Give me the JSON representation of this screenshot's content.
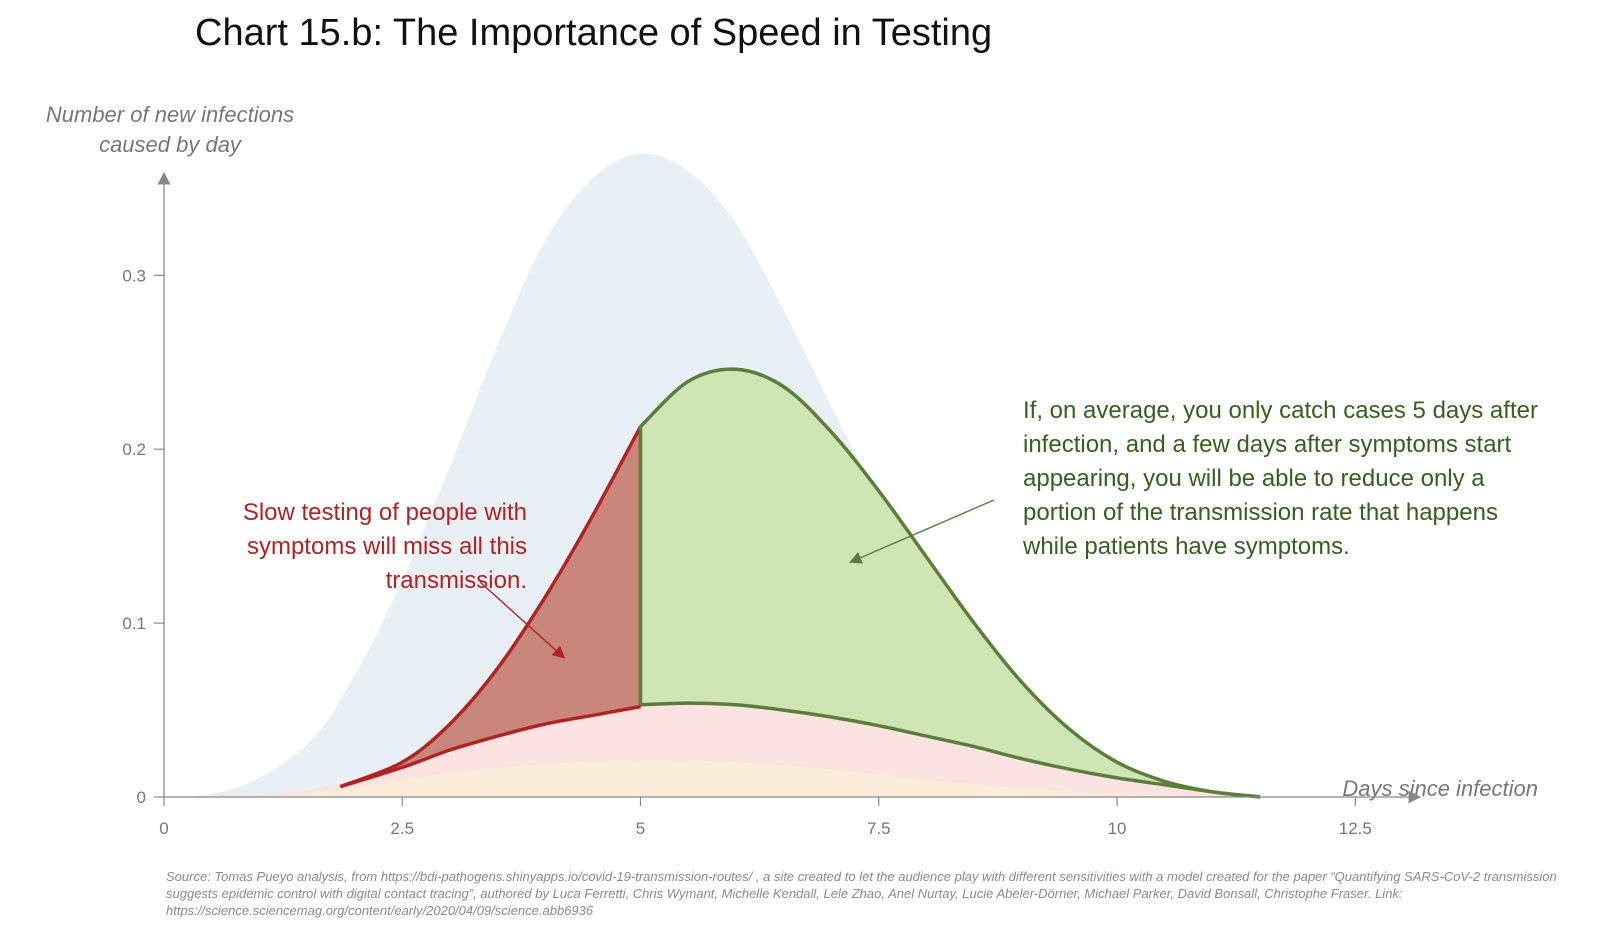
{
  "title": "Chart 15.b: The Importance of Speed in Testing",
  "source_note": "Source: Tomas Pueyo analysis, from https://bdi-pathogens.shinyapps.io/covid-19-transmission-routes/ , a site created to let the audience play with different sensitivities with a model created for the paper “Quantifying SARS-CoV-2 transmission suggests epidemic control with digital contact tracing”, authored by Luca Ferretti, Chris Wymant, Michelle Kendall, Lele Zhao, Anel Nurtay, Lucie Abeler-Dörner, Michael Parker, David Bonsall, Christophe Fraser. Link: https://science.sciencemag.org/content/early/2020/04/09/science.abb6936",
  "chart_data": {
    "type": "area",
    "xlabel": "Days since infection",
    "ylabel": "Number of new infections caused by day",
    "xlim": [
      0,
      13.2
    ],
    "ylim": [
      0,
      0.36
    ],
    "x_ticks": [
      0,
      2.5,
      5,
      7.5,
      10,
      12.5
    ],
    "x_tick_labels": [
      "0",
      "2.5",
      "5",
      "7.5",
      "10",
      "12.5"
    ],
    "y_ticks": [
      0,
      0.1,
      0.2,
      0.3
    ],
    "y_tick_labels": [
      "0",
      "0.1",
      "0.2",
      "0.3"
    ],
    "grid": false,
    "series": [
      {
        "role": "total",
        "color": "#e8f0f5",
        "x": [
          0.2,
          0.8,
          1.5,
          2.0,
          2.5,
          3.0,
          3.5,
          4.0,
          4.5,
          5.0,
          5.5,
          6.0,
          6.5,
          7.0,
          7.5,
          8.0,
          8.5,
          9.0,
          9.5,
          10.0,
          10.5,
          11.0,
          11.5
        ],
        "y": [
          0.0,
          0.006,
          0.03,
          0.07,
          0.125,
          0.19,
          0.26,
          0.32,
          0.356,
          0.37,
          0.36,
          0.33,
          0.28,
          0.225,
          0.17,
          0.12,
          0.08,
          0.05,
          0.028,
          0.014,
          0.006,
          0.002,
          0.0
        ]
      },
      {
        "role": "asymptomatic",
        "color": "#fbe3e1",
        "x": [
          0.8,
          1.5,
          2.0,
          2.5,
          3.0,
          3.5,
          4.0,
          4.5,
          5.0,
          5.5,
          6.0,
          6.5,
          7.0,
          7.5,
          8.0,
          8.5,
          9.0,
          9.5,
          10.0,
          10.5,
          11.0,
          11.5
        ],
        "y": [
          0.0,
          0.004,
          0.01,
          0.02,
          0.031,
          0.04,
          0.046,
          0.05,
          0.053,
          0.054,
          0.053,
          0.05,
          0.046,
          0.041,
          0.035,
          0.029,
          0.022,
          0.016,
          0.011,
          0.007,
          0.003,
          0.0
        ]
      },
      {
        "role": "environmental",
        "color": "#faecd8",
        "x": [
          1.2,
          2.0,
          3.0,
          4.0,
          5.0,
          6.0,
          7.0,
          8.0,
          9.0,
          10.0,
          11.0
        ],
        "y": [
          0.0,
          0.006,
          0.014,
          0.019,
          0.021,
          0.02,
          0.016,
          0.01,
          0.005,
          0.002,
          0.0
        ]
      },
      {
        "role": "missed-before-testing",
        "color": "#c9867a",
        "stroke": "#b22222",
        "x_range": [
          1.85,
          5.0
        ],
        "upper": {
          "x": [
            1.85,
            2.5,
            3.0,
            3.5,
            4.0,
            4.5,
            5.0
          ],
          "y": [
            0.006,
            0.02,
            0.042,
            0.074,
            0.115,
            0.162,
            0.213
          ]
        },
        "lower": {
          "x": [
            1.85,
            2.5,
            3.0,
            3.5,
            4.0,
            4.5,
            5.0
          ],
          "y": [
            0.006,
            0.017,
            0.027,
            0.035,
            0.042,
            0.047,
            0.052
          ]
        }
      },
      {
        "role": "reducible-after-testing",
        "color": "#cfe6b4",
        "stroke": "#5a7f3a",
        "x_range": [
          5.0,
          11.5
        ],
        "upper": {
          "x": [
            5.0,
            5.5,
            6.0,
            6.5,
            7.0,
            7.5,
            8.0,
            8.5,
            9.0,
            9.5,
            10.0,
            10.5,
            11.0,
            11.5
          ],
          "y": [
            0.213,
            0.239,
            0.246,
            0.236,
            0.21,
            0.176,
            0.138,
            0.1,
            0.066,
            0.039,
            0.02,
            0.009,
            0.003,
            0.0
          ]
        },
        "lower": {
          "x": [
            5.0,
            5.5,
            6.0,
            6.5,
            7.0,
            7.5,
            8.0,
            8.5,
            9.0,
            9.5,
            10.0,
            10.5,
            11.0,
            11.5
          ],
          "y": [
            0.053,
            0.054,
            0.053,
            0.05,
            0.046,
            0.041,
            0.035,
            0.029,
            0.022,
            0.016,
            0.011,
            0.007,
            0.003,
            0.0
          ]
        }
      }
    ],
    "annotations": [
      {
        "role": "missed",
        "text": "Slow testing of people with symptoms will miss all this transmission.",
        "color": "#b22222",
        "arrow_to": [
          4.2,
          0.08
        ]
      },
      {
        "role": "reducible",
        "text": "If, on average, you only catch cases 5 days after infection, and a few days after symptoms start appearing, you will be able to reduce only a portion of the transmission rate that happens while patients have symptoms.",
        "color": "#33621a",
        "arrow_to": [
          7.2,
          0.135
        ]
      }
    ]
  }
}
